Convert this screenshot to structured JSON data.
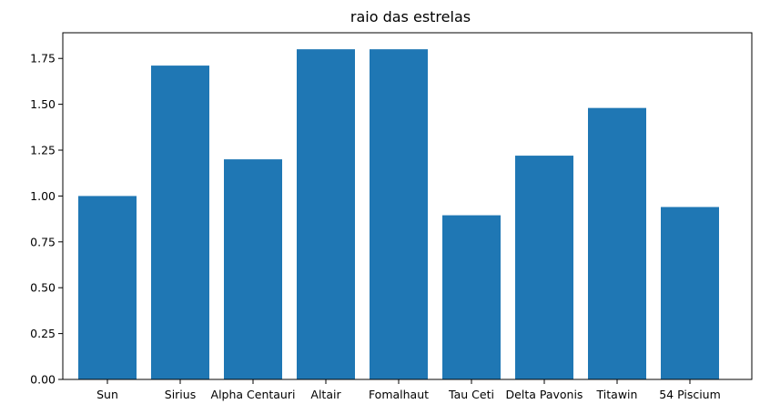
{
  "chart_data": {
    "type": "bar",
    "title": "raio das estrelas",
    "xlabel": "",
    "ylabel": "",
    "categories": [
      "Sun",
      "Sirius",
      "Alpha Centauri",
      "Altair",
      "Fomalhaut",
      "Tau Ceti",
      "Delta Pavonis",
      "Titawin",
      "54 Piscium"
    ],
    "values": [
      1.0,
      1.711,
      1.2,
      1.8,
      1.8,
      0.895,
      1.22,
      1.48,
      0.94
    ],
    "ylim": [
      0,
      1.89
    ],
    "yticks": [
      0.0,
      0.25,
      0.5,
      0.75,
      1.0,
      1.25,
      1.5,
      1.75
    ],
    "ytick_labels": [
      "0.00",
      "0.25",
      "0.50",
      "0.75",
      "1.00",
      "1.25",
      "1.50",
      "1.75"
    ],
    "bar_color": "#1f77b4",
    "grid": false,
    "legend": "none"
  }
}
